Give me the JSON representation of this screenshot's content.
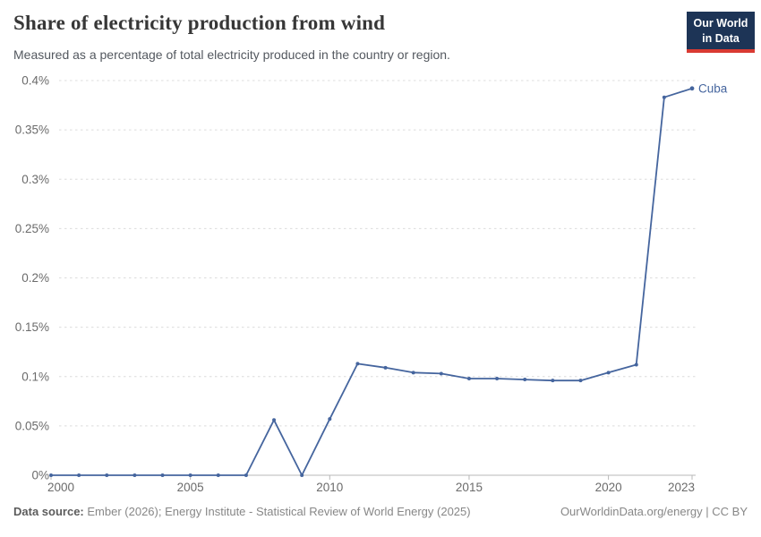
{
  "header": {
    "title": "Share of electricity production from wind",
    "subtitle": "Measured as a percentage of total electricity produced in the country or region.",
    "logo": {
      "line1": "Our World",
      "line2": "in Data"
    }
  },
  "chart_data": {
    "type": "line",
    "title": "Share of electricity production from wind",
    "xlabel": "",
    "ylabel": "",
    "xlim": [
      2000,
      2023
    ],
    "ylim": [
      0,
      0.4
    ],
    "x_ticks": [
      2000,
      2005,
      2010,
      2015,
      2020,
      2023
    ],
    "y_ticks": [
      "0%",
      "0.05%",
      "0.1%",
      "0.15%",
      "0.2%",
      "0.25%",
      "0.3%",
      "0.35%",
      "0.4%"
    ],
    "y_tick_values": [
      0,
      0.05,
      0.1,
      0.15,
      0.2,
      0.25,
      0.3,
      0.35,
      0.4
    ],
    "grid": "horizontal-dashed",
    "legend_position": "end-of-line-label",
    "series": [
      {
        "name": "Cuba",
        "x": [
          2000,
          2001,
          2002,
          2003,
          2004,
          2005,
          2006,
          2007,
          2008,
          2009,
          2010,
          2011,
          2012,
          2013,
          2014,
          2015,
          2016,
          2017,
          2018,
          2019,
          2020,
          2021,
          2022,
          2023
        ],
        "values": [
          0,
          0,
          0,
          0,
          0,
          0,
          0,
          0,
          0.056,
          0,
          0.057,
          0.113,
          0.109,
          0.104,
          0.103,
          0.098,
          0.098,
          0.097,
          0.096,
          0.096,
          0.104,
          0.112,
          0.383,
          0.392
        ]
      }
    ]
  },
  "footer": {
    "datasource_label": "Data source:",
    "datasource_text": "Ember (2026); Energy Institute - Statistical Review of World Energy (2025)",
    "right_text": "OurWorldinData.org/energy | CC BY"
  },
  "colors": {
    "line": "#45659e",
    "grid": "#dcdcdc",
    "axis": "#b8b8b8",
    "tick_text": "#6b6b6b",
    "title_text": "#373737",
    "subtitle_text": "#53585f",
    "footer_text": "#878787",
    "logo_navy": "#1d3456",
    "logo_red": "#d93a32"
  }
}
